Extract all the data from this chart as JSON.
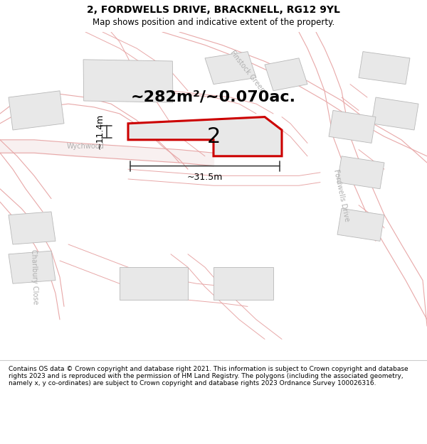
{
  "title": "2, FORDWELLS DRIVE, BRACKNELL, RG12 9YL",
  "subtitle": "Map shows position and indicative extent of the property.",
  "area_label": "~282m²/~0.070ac.",
  "number_label": "2",
  "width_label": "~31.5m",
  "height_label": "~11.4m",
  "footer": "Contains OS data © Crown copyright and database right 2021. This information is subject to Crown copyright and database rights 2023 and is reproduced with the permission of HM Land Registry. The polygons (including the associated geometry, namely x, y co-ordinates) are subject to Crown copyright and database rights 2023 Ordnance Survey 100026316.",
  "map_bg": "#ffffff",
  "road_color": "#e8a8a8",
  "road_outline_color": "#c8b8b8",
  "building_color": "#e8e8e8",
  "building_edge": "#b8b8b8",
  "prop_color": "#e8e8e8",
  "prop_edge": "#cc0000",
  "dim_color": "#404040",
  "road_label_color": "#b0b0b0",
  "finstock_label": "#b0b0b0",
  "wychwood_label": "#b0b0b0",
  "fordwells_label": "#b0b0b0",
  "charlbury_label": "#b0b0b0",
  "title_color": "#000000",
  "footer_color": "#000000",
  "title_fontsize": 10,
  "subtitle_fontsize": 8.5,
  "area_fontsize": 16,
  "number_fontsize": 22,
  "dim_fontsize": 9,
  "road_label_fontsize": 7,
  "footer_fontsize": 6.5
}
